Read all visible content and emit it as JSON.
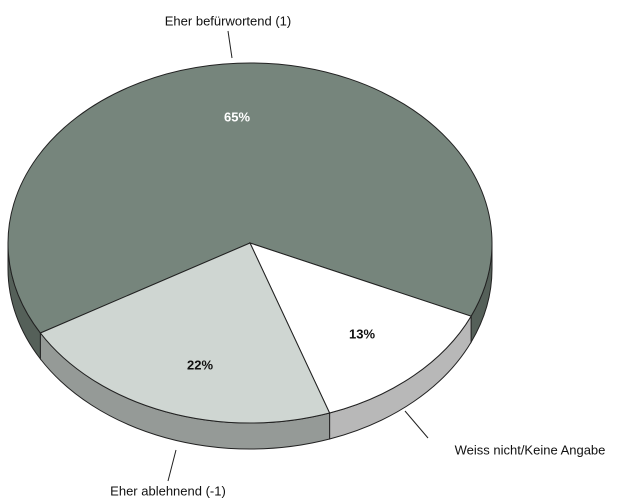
{
  "chart_data": {
    "type": "pie",
    "categories": [
      "Eher befürwortend (1)",
      "Weiss nicht/Keine Angabe",
      "Eher ablehnend (-1)"
    ],
    "values": [
      65,
      13,
      22
    ],
    "value_labels": [
      "65%",
      "13%",
      "22%"
    ],
    "colors": [
      "#76857c",
      "#ffffff",
      "#cfd6d2"
    ]
  }
}
